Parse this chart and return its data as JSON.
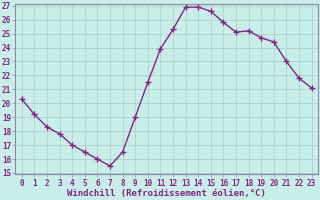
{
  "x": [
    0,
    1,
    2,
    3,
    4,
    5,
    6,
    7,
    8,
    9,
    10,
    11,
    12,
    13,
    14,
    15,
    16,
    17,
    18,
    19,
    20,
    21,
    22,
    23
  ],
  "y": [
    20.3,
    19.2,
    18.3,
    17.8,
    17.0,
    16.5,
    16.0,
    15.5,
    16.5,
    19.0,
    21.5,
    23.9,
    25.3,
    26.9,
    26.9,
    26.6,
    25.8,
    25.1,
    25.2,
    24.7,
    24.4,
    23.0,
    21.8,
    21.1
  ],
  "line_color": "#882288",
  "marker": "s",
  "marker_size": 2.2,
  "linewidth": 1.0,
  "bg_color": "#C8EEE8",
  "grid_color": "#AACCCC",
  "tick_color": "#882288",
  "label_color": "#882288",
  "xlabel": "Windchill (Refroidissement éolien,°C)",
  "ylim": [
    15,
    27
  ],
  "xlim": [
    -0.5,
    23.5
  ],
  "yticks": [
    15,
    16,
    17,
    18,
    19,
    20,
    21,
    22,
    23,
    24,
    25,
    26,
    27
  ],
  "xticks": [
    0,
    1,
    2,
    3,
    4,
    5,
    6,
    7,
    8,
    9,
    10,
    11,
    12,
    13,
    14,
    15,
    16,
    17,
    18,
    19,
    20,
    21,
    22,
    23
  ],
  "xtick_labels": [
    "0",
    "1",
    "2",
    "3",
    "4",
    "5",
    "6",
    "7",
    "8",
    "9",
    "10",
    "11",
    "12",
    "13",
    "14",
    "15",
    "16",
    "17",
    "18",
    "19",
    "20",
    "21",
    "22",
    "23"
  ],
  "ytick_labels": [
    "15",
    "16",
    "17",
    "18",
    "19",
    "20",
    "21",
    "22",
    "23",
    "24",
    "25",
    "26",
    "27"
  ],
  "tick_fontsize": 5.5,
  "xlabel_fontsize": 6.5,
  "spine_color": "#8888AA"
}
